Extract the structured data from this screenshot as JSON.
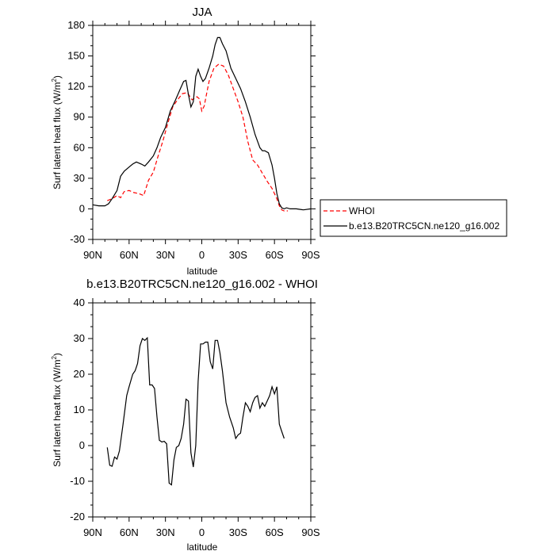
{
  "chart_data": [
    {
      "type": "line",
      "title": "JJA",
      "xlabel": "latitude",
      "ylabel_main": "Surf latent heat flux (W/m",
      "ylabel_sup": "2",
      "ylabel_end": ")",
      "xlim": [
        90,
        -90
      ],
      "ylim": [
        -30,
        180
      ],
      "xticks": [
        90,
        60,
        30,
        0,
        -30,
        -60,
        -90
      ],
      "xtick_labels": [
        "90N",
        "60N",
        "30N",
        "0",
        "30S",
        "60S",
        "90S"
      ],
      "yticks": [
        -30,
        0,
        30,
        60,
        90,
        120,
        150,
        180
      ],
      "ytick_labels": [
        "-30",
        "0",
        "30",
        "60",
        "90",
        "120",
        "150",
        "180"
      ],
      "legend_position": "outside-right",
      "series": [
        {
          "name": "WHOI",
          "color": "#ff0000",
          "dash": "dashed",
          "x": [
            78,
            74,
            70,
            67,
            64,
            60,
            56,
            52,
            48,
            44,
            40,
            36,
            32,
            28,
            24,
            20,
            16,
            12,
            8,
            4,
            2,
            0,
            -2,
            -4,
            -6,
            -10,
            -14,
            -18,
            -22,
            -26,
            -30,
            -34,
            -38,
            -42,
            -46,
            -50,
            -54,
            -58,
            -62,
            -64,
            -66,
            -68,
            -71
          ],
          "y": [
            8,
            10,
            13,
            11,
            17,
            18,
            16,
            15,
            13,
            28,
            36,
            52,
            67,
            84,
            100,
            107,
            113,
            114,
            107,
            110,
            108,
            96,
            101,
            113,
            125,
            138,
            142,
            140,
            131,
            118,
            105,
            90,
            66,
            48,
            43,
            35,
            27,
            20,
            10,
            3,
            -1,
            -2,
            -2
          ]
        },
        {
          "name": "b.e13.B20TRC5CN.ne120_g16.002",
          "color": "#000000",
          "dash": "solid",
          "x": [
            90,
            85,
            80,
            77,
            74,
            70,
            67,
            64,
            60,
            57,
            54,
            50,
            47,
            44,
            40,
            37,
            34,
            30,
            26,
            22,
            18,
            15,
            13,
            11,
            9,
            7,
            5,
            3,
            1,
            -1,
            -3,
            -6,
            -9,
            -11,
            -13,
            -15,
            -17,
            -20,
            -24,
            -28,
            -32,
            -36,
            -40,
            -44,
            -48,
            -50,
            -52,
            -55,
            -58,
            -60,
            -62,
            -64,
            -66,
            -68,
            -70,
            -73,
            -78,
            -84,
            -90
          ],
          "y": [
            4,
            3,
            3,
            5,
            10,
            18,
            32,
            37,
            41,
            44,
            46,
            44,
            42,
            46,
            52,
            60,
            70,
            80,
            96,
            106,
            117,
            125,
            126,
            112,
            100,
            105,
            130,
            137,
            130,
            125,
            128,
            138,
            150,
            161,
            168,
            168,
            162,
            155,
            138,
            128,
            118,
            105,
            90,
            73,
            60,
            57,
            57,
            55,
            43,
            30,
            15,
            5,
            1,
            0,
            1,
            0,
            0,
            -1,
            0
          ]
        }
      ]
    },
    {
      "type": "line",
      "title": "b.e13.B20TRC5CN.ne120_g16.002 - WHOI",
      "xlabel": "latitude",
      "ylabel_main": "Surf latent heat flux (W/m",
      "ylabel_sup": "2",
      "ylabel_end": ")",
      "xlim": [
        90,
        -90
      ],
      "ylim": [
        -20,
        40
      ],
      "xticks": [
        90,
        60,
        30,
        0,
        -30,
        -60,
        -90
      ],
      "xtick_labels": [
        "90N",
        "60N",
        "30N",
        "0",
        "30S",
        "60S",
        "90S"
      ],
      "yticks": [
        -20,
        -10,
        0,
        10,
        20,
        30,
        40
      ],
      "ytick_labels": [
        "-20",
        "-10",
        "0",
        "10",
        "20",
        "30",
        "40"
      ],
      "series": [
        {
          "color": "#000000",
          "dash": "solid",
          "x": [
            78,
            76,
            74,
            72,
            70,
            68,
            65,
            62,
            60,
            57,
            55,
            53,
            51,
            49,
            47,
            45,
            43,
            41,
            39,
            37,
            35,
            33,
            31,
            29,
            27,
            25,
            23,
            21,
            19,
            17,
            15,
            13,
            11,
            9,
            7,
            5,
            3,
            1,
            -1,
            -3,
            -5,
            -7,
            -9,
            -11,
            -13,
            -15,
            -17,
            -20,
            -23,
            -26,
            -28,
            -30,
            -32,
            -34,
            -36,
            -38,
            -40,
            -42,
            -44,
            -46,
            -48,
            -50,
            -52,
            -54,
            -56,
            -58,
            -60,
            -62,
            -64,
            -66,
            -68
          ],
          "y": [
            -0.5,
            -5.5,
            -5.8,
            -3.2,
            -3.8,
            -1.5,
            6,
            14,
            16.5,
            20,
            21,
            23,
            28,
            30,
            29.5,
            30.2,
            17,
            17,
            16,
            8,
            1.5,
            1,
            1.2,
            0.5,
            -10.5,
            -11,
            -4,
            -0.5,
            0,
            2,
            6,
            13,
            12.5,
            -2,
            -6,
            0,
            18,
            28.5,
            28.5,
            29,
            29,
            23.5,
            21.5,
            29.5,
            29.5,
            26,
            21,
            12,
            8,
            5,
            2,
            3,
            3.5,
            8,
            12,
            11,
            9.5,
            12,
            13.5,
            14,
            10.5,
            12,
            11,
            12.5,
            14,
            16.5,
            14.5,
            16.5,
            6,
            4,
            2
          ]
        }
      ]
    }
  ],
  "legend": {
    "entries": [
      "WHOI",
      "b.e13.B20TRC5CN.ne120_g16.002"
    ]
  }
}
